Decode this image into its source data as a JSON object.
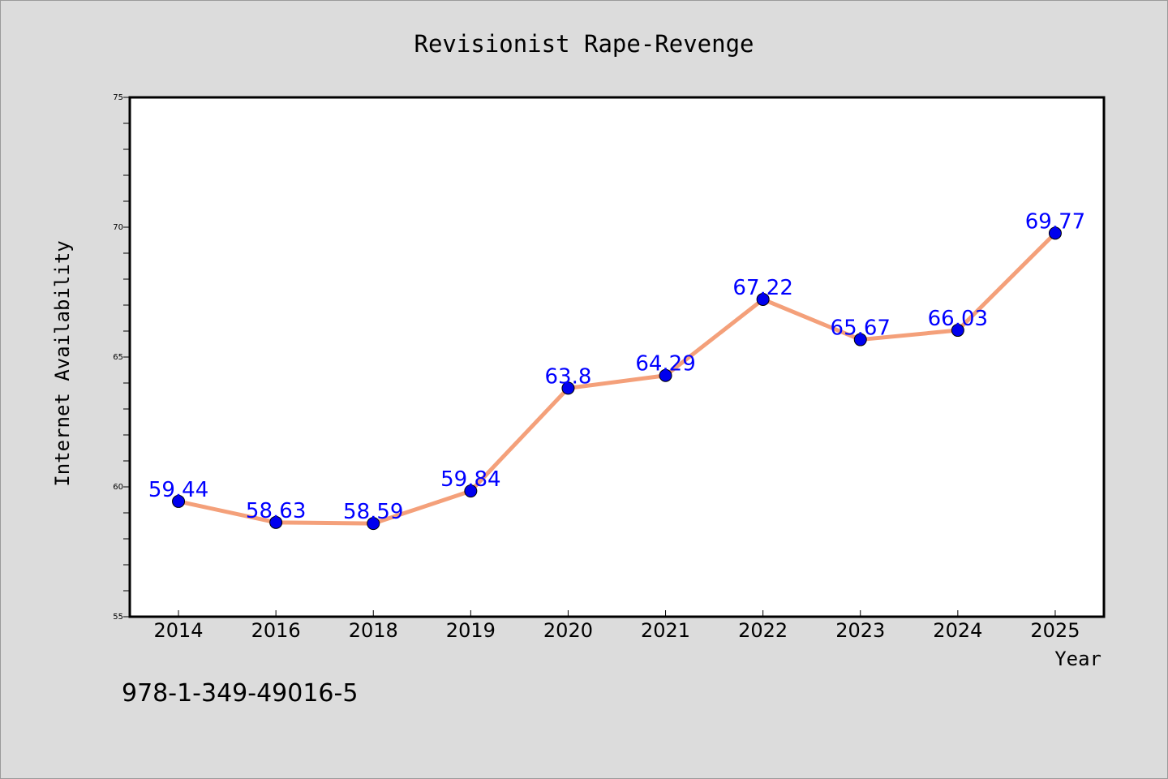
{
  "chart_data": {
    "type": "line",
    "title": "Revisionist Rape-Revenge",
    "xlabel": "Year",
    "ylabel": "Internet Availability",
    "categories": [
      "2014",
      "2016",
      "2018",
      "2019",
      "2020",
      "2021",
      "2022",
      "2023",
      "2024",
      "2025"
    ],
    "series": [
      {
        "values": [
          59.44,
          58.63,
          58.59,
          59.84,
          63.8,
          64.29,
          67.22,
          65.67,
          66.03,
          69.77
        ],
        "labels": [
          "59.44",
          "58.63",
          "58.59",
          "59.84",
          "63.8",
          "64.29",
          "67.22",
          "65.67",
          "66.03",
          "69.77"
        ]
      }
    ],
    "ylim": [
      55,
      75
    ],
    "yticks": [
      "55",
      "60",
      "65",
      "70",
      "75"
    ],
    "grid": false,
    "legend": "none",
    "colors": {
      "line": "#f4a07a",
      "marker": "#0000ee",
      "data_label": "#0000ff",
      "background": "#dcdcdc",
      "plot": "#ffffff"
    }
  },
  "footer": {
    "isbn": "978-1-349-49016-5"
  }
}
